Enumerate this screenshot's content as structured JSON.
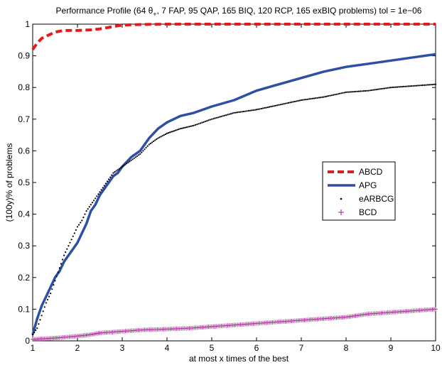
{
  "chart_data": {
    "type": "line",
    "title": "Performance Profile (64 θ+, 7 FAP, 95 QAP, 165 BIQ, 120 RCP, 165 exBIQ problems) tol = 1e−06",
    "title_parts": {
      "before_sub": "Performance Profile (64 θ",
      "subscript": "+",
      "after_sub": ", 7 FAP, 95 QAP, 165 BIQ, 120 RCP, 165 exBIQ problems) tol = 1e−06"
    },
    "xlabel": "at most x times of the best",
    "ylabel": "(100y)% of problems",
    "xlim": [
      1,
      10
    ],
    "ylim": [
      0,
      1
    ],
    "x_ticks": [
      "1",
      "2",
      "3",
      "4",
      "5",
      "6",
      "7",
      "8",
      "9",
      "10"
    ],
    "y_ticks": [
      "0",
      "0.1",
      "0.2",
      "0.3",
      "0.4",
      "0.5",
      "0.6",
      "0.7",
      "0.8",
      "0.9",
      "1"
    ],
    "grid": false,
    "legend_position": "right-middle",
    "series": [
      {
        "name": "ABCD",
        "style": "dashed",
        "color": "#e41a1c",
        "points": [
          [
            1,
            0.92
          ],
          [
            1.1,
            0.94
          ],
          [
            1.2,
            0.955
          ],
          [
            1.35,
            0.965
          ],
          [
            1.5,
            0.975
          ],
          [
            1.7,
            0.98
          ],
          [
            2,
            0.98
          ],
          [
            2.3,
            0.982
          ],
          [
            2.5,
            0.985
          ],
          [
            2.7,
            0.99
          ],
          [
            3,
            0.997
          ],
          [
            3.5,
            0.999
          ],
          [
            4,
            1.0
          ],
          [
            10,
            1.0
          ]
        ]
      },
      {
        "name": "APG",
        "style": "solid",
        "color": "#2e4fa6",
        "points": [
          [
            1,
            0.02
          ],
          [
            1.1,
            0.07
          ],
          [
            1.2,
            0.11
          ],
          [
            1.3,
            0.14
          ],
          [
            1.4,
            0.17
          ],
          [
            1.5,
            0.2
          ],
          [
            1.6,
            0.22
          ],
          [
            1.7,
            0.25
          ],
          [
            1.8,
            0.27
          ],
          [
            1.9,
            0.29
          ],
          [
            2,
            0.31
          ],
          [
            2.1,
            0.34
          ],
          [
            2.2,
            0.37
          ],
          [
            2.3,
            0.41
          ],
          [
            2.4,
            0.43
          ],
          [
            2.5,
            0.46
          ],
          [
            2.6,
            0.48
          ],
          [
            2.7,
            0.5
          ],
          [
            2.8,
            0.52
          ],
          [
            2.9,
            0.53
          ],
          [
            3,
            0.55
          ],
          [
            3.2,
            0.58
          ],
          [
            3.4,
            0.6
          ],
          [
            3.6,
            0.64
          ],
          [
            3.8,
            0.67
          ],
          [
            4,
            0.69
          ],
          [
            4.3,
            0.71
          ],
          [
            4.6,
            0.72
          ],
          [
            5,
            0.74
          ],
          [
            5.5,
            0.76
          ],
          [
            6,
            0.79
          ],
          [
            6.5,
            0.81
          ],
          [
            7,
            0.83
          ],
          [
            7.5,
            0.85
          ],
          [
            8,
            0.865
          ],
          [
            8.5,
            0.875
          ],
          [
            9,
            0.885
          ],
          [
            9.5,
            0.895
          ],
          [
            10,
            0.905
          ]
        ]
      },
      {
        "name": "eARBCG",
        "style": "dotted",
        "color": "#000000",
        "points": [
          [
            1,
            0.02
          ],
          [
            1.1,
            0.04
          ],
          [
            1.2,
            0.08
          ],
          [
            1.3,
            0.12
          ],
          [
            1.4,
            0.15
          ],
          [
            1.5,
            0.19
          ],
          [
            1.6,
            0.23
          ],
          [
            1.7,
            0.27
          ],
          [
            1.8,
            0.3
          ],
          [
            1.9,
            0.33
          ],
          [
            2,
            0.36
          ],
          [
            2.1,
            0.38
          ],
          [
            2.2,
            0.41
          ],
          [
            2.3,
            0.43
          ],
          [
            2.4,
            0.45
          ],
          [
            2.5,
            0.47
          ],
          [
            2.6,
            0.49
          ],
          [
            2.7,
            0.51
          ],
          [
            2.8,
            0.53
          ],
          [
            2.9,
            0.54
          ],
          [
            3,
            0.55
          ],
          [
            3.2,
            0.57
          ],
          [
            3.4,
            0.59
          ],
          [
            3.6,
            0.62
          ],
          [
            3.8,
            0.64
          ],
          [
            4,
            0.655
          ],
          [
            4.3,
            0.67
          ],
          [
            4.6,
            0.68
          ],
          [
            5,
            0.7
          ],
          [
            5.5,
            0.72
          ],
          [
            6,
            0.73
          ],
          [
            6.5,
            0.745
          ],
          [
            7,
            0.76
          ],
          [
            7.5,
            0.77
          ],
          [
            8,
            0.785
          ],
          [
            8.5,
            0.79
          ],
          [
            9,
            0.8
          ],
          [
            9.5,
            0.805
          ],
          [
            10,
            0.81
          ]
        ]
      },
      {
        "name": "BCD",
        "style": "plus-markers",
        "color": "#b03a9a",
        "points": [
          [
            1,
            0.005
          ],
          [
            1.3,
            0.007
          ],
          [
            1.6,
            0.01
          ],
          [
            2,
            0.015
          ],
          [
            2.3,
            0.02
          ],
          [
            2.5,
            0.025
          ],
          [
            3,
            0.03
          ],
          [
            3.5,
            0.035
          ],
          [
            4,
            0.037
          ],
          [
            4.5,
            0.04
          ],
          [
            5,
            0.045
          ],
          [
            5.5,
            0.05
          ],
          [
            6,
            0.055
          ],
          [
            6.5,
            0.06
          ],
          [
            7,
            0.065
          ],
          [
            7.5,
            0.07
          ],
          [
            8,
            0.075
          ],
          [
            8.5,
            0.085
          ],
          [
            9,
            0.09
          ],
          [
            9.5,
            0.095
          ],
          [
            10,
            0.1
          ]
        ]
      }
    ]
  }
}
